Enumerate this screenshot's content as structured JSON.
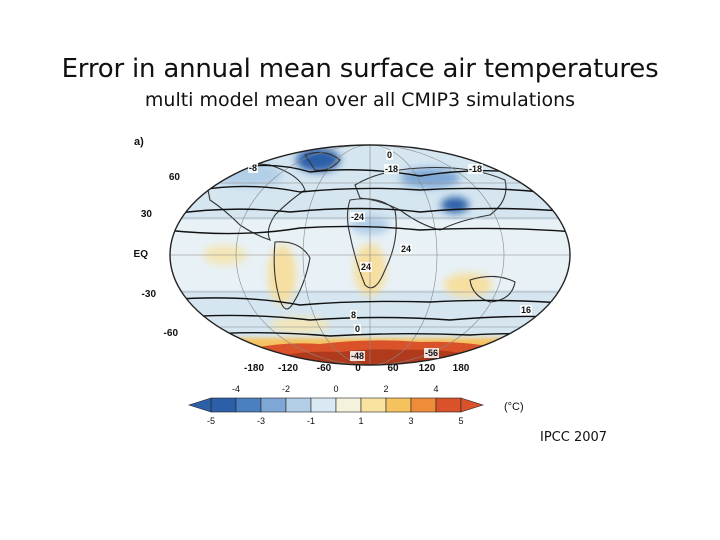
{
  "title": "Error in annual mean surface air temperatures",
  "subtitle": "multi model mean over all CMIP3 simulations",
  "panel_label": "a)",
  "lat_labels": [
    "60",
    "30",
    "EQ",
    "-30",
    "-60"
  ],
  "lon_labels": [
    "-180",
    "-120",
    "-60",
    "0",
    "60",
    "120",
    "180"
  ],
  "contour_labels": [
    "-8",
    "0",
    "-18",
    "-18",
    "-24",
    "24",
    "24",
    "8",
    "16",
    "0",
    "-48",
    "-56"
  ],
  "colorbar": {
    "top_ticks": [
      "-4",
      "-2",
      "0",
      "2",
      "4"
    ],
    "bottom_ticks": [
      "-5",
      "-3",
      "-1",
      "1",
      "3",
      "5"
    ],
    "unit": "(°C)",
    "colors": [
      "#2c5fa8",
      "#4a7fc0",
      "#7ea7d6",
      "#b3cfe8",
      "#d9e8f3",
      "#f4f2dc",
      "#f9e3a0",
      "#f5c25e",
      "#ee8c3a",
      "#d9522a"
    ]
  },
  "credit": "IPCC 2007",
  "map_colors": {
    "ocean_light": "#d5e6f1",
    "ocean_pale": "#e8f1f6",
    "warm": "#f6dfa0",
    "warm_strong": "#ee8c3a",
    "antarctic_hot": "#d9522a",
    "cold": "#7ea7d6",
    "cold_strong": "#2c5fa8",
    "land": "#dbe9f3"
  }
}
